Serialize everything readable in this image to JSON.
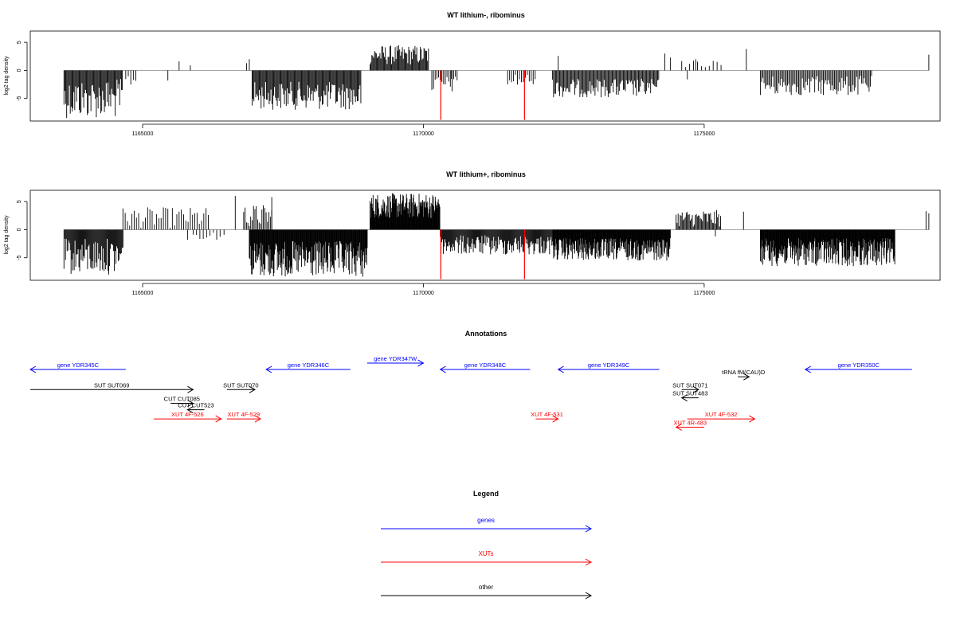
{
  "chart_data": [
    {
      "type": "bar",
      "title": "WT lithium-, ribominus",
      "ylabel": "log2 tag density",
      "xlim": [
        1163000,
        1179200
      ],
      "ylim": [
        -9,
        7
      ],
      "x_ticks": [
        1165000,
        1170000,
        1175000
      ],
      "y_ticks": [
        -5,
        0,
        5
      ],
      "x_tick_labels": [
        "1165000",
        "1170000",
        "1175000"
      ],
      "y_tick_labels": [
        "-5",
        "0",
        "5"
      ],
      "highlight_color": "#ff0000",
      "highlight_bars": [
        {
          "x": 1170310,
          "y": -8.8
        },
        {
          "x": 1171800,
          "y": -8.8
        }
      ],
      "series": [
        {
          "segments": [
            {
              "x0": 1163600,
              "x1": 1164650,
              "sign": -1,
              "min": 1.5,
              "max": 8.5,
              "step": 16
            },
            {
              "x0": 1164700,
              "x1": 1164900,
              "sign": -1,
              "min": 0.5,
              "max": 3,
              "step": 45
            },
            {
              "x0": 1166950,
              "x1": 1168900,
              "sign": -1,
              "min": 2,
              "max": 7,
              "step": 16
            },
            {
              "x0": 1169050,
              "x1": 1170100,
              "sign": 1,
              "min": 1,
              "max": 4.5,
              "step": 16
            },
            {
              "x0": 1170150,
              "x1": 1170600,
              "sign": -1,
              "min": 1,
              "max": 4,
              "step": 30
            },
            {
              "x0": 1171500,
              "x1": 1172000,
              "sign": -1,
              "min": 0.5,
              "max": 3,
              "step": 35
            },
            {
              "x0": 1172300,
              "x1": 1174200,
              "sign": -1,
              "min": 1.5,
              "max": 4.8,
              "step": 18
            },
            {
              "x0": 1174600,
              "x1": 1175300,
              "sign": 1,
              "min": 0.5,
              "max": 1.8,
              "step": 70
            },
            {
              "x0": 1176000,
              "x1": 1178000,
              "sign": -1,
              "min": 1,
              "max": 4.5,
              "step": 22
            }
          ]
        },
        {
          "spikes": [
            [
              1165650,
              1.6
            ],
            [
              1165850,
              0.9
            ],
            [
              1165450,
              -1.8
            ],
            [
              1166850,
              1.3
            ],
            [
              1166900,
              2.0
            ],
            [
              1170500,
              -1.5
            ],
            [
              1172400,
              2.6
            ],
            [
              1174300,
              3.0
            ],
            [
              1174400,
              2.3
            ],
            [
              1174700,
              -1.6
            ],
            [
              1174850,
              2.0
            ],
            [
              1175750,
              3.8
            ],
            [
              1179000,
              2.8
            ]
          ]
        }
      ]
    },
    {
      "type": "bar",
      "title": "WT lithium+, ribominus",
      "ylabel": "log2 tag density",
      "xlim": [
        1163000,
        1179200
      ],
      "ylim": [
        -9,
        7
      ],
      "x_ticks": [
        1165000,
        1170000,
        1175000
      ],
      "y_ticks": [
        -5,
        0,
        5
      ],
      "x_tick_labels": [
        "1165000",
        "1170000",
        "1175000"
      ],
      "y_tick_labels": [
        "-5",
        "0",
        "5"
      ],
      "highlight_color": "#ff0000",
      "highlight_bars": [
        {
          "x": 1170310,
          "y": -8.8
        },
        {
          "x": 1171800,
          "y": -8.8
        }
      ],
      "series": [
        {
          "segments": [
            {
              "x0": 1163600,
              "x1": 1164650,
              "sign": -1,
              "min": 1.5,
              "max": 8,
              "step": 14
            },
            {
              "x0": 1164650,
              "x1": 1166200,
              "sign": 1,
              "min": 0.3,
              "max": 4,
              "step": 40
            },
            {
              "x0": 1165900,
              "x1": 1166400,
              "sign": -1,
              "min": 0.3,
              "max": 1.8,
              "step": 60
            },
            {
              "x0": 1166900,
              "x1": 1169000,
              "sign": -1,
              "min": 2,
              "max": 8.5,
              "step": 10
            },
            {
              "x0": 1166800,
              "x1": 1167300,
              "sign": 1,
              "min": 0.5,
              "max": 4.5,
              "step": 25
            },
            {
              "x0": 1169050,
              "x1": 1170300,
              "sign": 1,
              "min": 2,
              "max": 6.5,
              "step": 9
            },
            {
              "x0": 1170300,
              "x1": 1172300,
              "sign": -1,
              "min": 1,
              "max": 4.5,
              "step": 14
            },
            {
              "x0": 1172300,
              "x1": 1174400,
              "sign": -1,
              "min": 1.5,
              "max": 5.5,
              "step": 9
            },
            {
              "x0": 1174500,
              "x1": 1175300,
              "sign": 1,
              "min": 0.5,
              "max": 3.5,
              "step": 18
            },
            {
              "x0": 1176000,
              "x1": 1178400,
              "sign": -1,
              "min": 1.5,
              "max": 6.5,
              "step": 9
            }
          ]
        },
        {
          "spikes": [
            [
              1166650,
              6.0
            ],
            [
              1167300,
              5.8
            ],
            [
              1175700,
              3.2
            ],
            [
              1178950,
              3.3
            ],
            [
              1179000,
              2.9
            ],
            [
              1165800,
              -1.8
            ],
            [
              1166450,
              -0.9
            ],
            [
              1175200,
              -1.2
            ]
          ]
        }
      ]
    }
  ],
  "annotations": {
    "title": "Annotations",
    "items": [
      {
        "label": "gene YDR345C",
        "color": "#0000ff",
        "x0": 1163000,
        "x1": 1164700,
        "dir": "left",
        "row": 0
      },
      {
        "label": "gene YDR346C",
        "color": "#0000ff",
        "x0": 1167200,
        "x1": 1168700,
        "dir": "left",
        "row": 0
      },
      {
        "label": "gene YDR347W",
        "color": "#0000ff",
        "x0": 1169000,
        "x1": 1170000,
        "dir": "right",
        "row": -0.7
      },
      {
        "label": "gene YDR348C",
        "color": "#0000ff",
        "x0": 1170300,
        "x1": 1171900,
        "dir": "left",
        "row": 0
      },
      {
        "label": "gene YDR349C",
        "color": "#0000ff",
        "x0": 1172400,
        "x1": 1174200,
        "dir": "left",
        "row": 0
      },
      {
        "label": "tRNA fM(CAU)D",
        "color": "#000000",
        "x0": 1175600,
        "x1": 1175800,
        "dir": "right",
        "row": 0.8
      },
      {
        "label": "gene YDR350C",
        "color": "#0000ff",
        "x0": 1176800,
        "x1": 1178700,
        "dir": "left",
        "row": 0
      },
      {
        "label": "SUT SUT069",
        "color": "#000000",
        "x0": 1163000,
        "x1": 1165900,
        "dir": "right",
        "row": 2.2
      },
      {
        "label": "SUT SUT070",
        "color": "#000000",
        "x0": 1166500,
        "x1": 1167000,
        "dir": "right",
        "row": 2.2
      },
      {
        "label": "SUT SUT071",
        "color": "#000000",
        "x0": 1174600,
        "x1": 1174900,
        "dir": "right",
        "row": 2.2
      },
      {
        "label": "SUT SUT483",
        "color": "#000000",
        "x0": 1174600,
        "x1": 1174900,
        "dir": "left",
        "row": 3.1
      },
      {
        "label": "CUT CUT085",
        "color": "#000000",
        "x0": 1165500,
        "x1": 1165900,
        "dir": "right",
        "row": 3.7
      },
      {
        "label": "CUT CUT523",
        "color": "#000000",
        "x0": 1165800,
        "x1": 1166100,
        "dir": "left",
        "row": 4.4
      },
      {
        "label": "XUT 4F-526",
        "color": "#ff0000",
        "x0": 1165200,
        "x1": 1166400,
        "dir": "right",
        "row": 5.4
      },
      {
        "label": "XUT 4F-529",
        "color": "#ff0000",
        "x0": 1166500,
        "x1": 1167100,
        "dir": "right",
        "row": 5.4
      },
      {
        "label": "XUT 4F-531",
        "color": "#ff0000",
        "x0": 1172000,
        "x1": 1172400,
        "dir": "right",
        "row": 5.4
      },
      {
        "label": "XUT 4F-532",
        "color": "#ff0000",
        "x0": 1174700,
        "x1": 1175900,
        "dir": "right",
        "row": 5.4
      },
      {
        "label": "XUT 4R-483",
        "color": "#ff0000",
        "x0": 1174500,
        "x1": 1175000,
        "dir": "left",
        "row": 6.3
      }
    ]
  },
  "legend": {
    "title": "Legend",
    "items": [
      {
        "label": "genes",
        "color": "#0000ff"
      },
      {
        "label": "XUTs",
        "color": "#ff0000"
      },
      {
        "label": "other",
        "color": "#000000"
      }
    ]
  }
}
